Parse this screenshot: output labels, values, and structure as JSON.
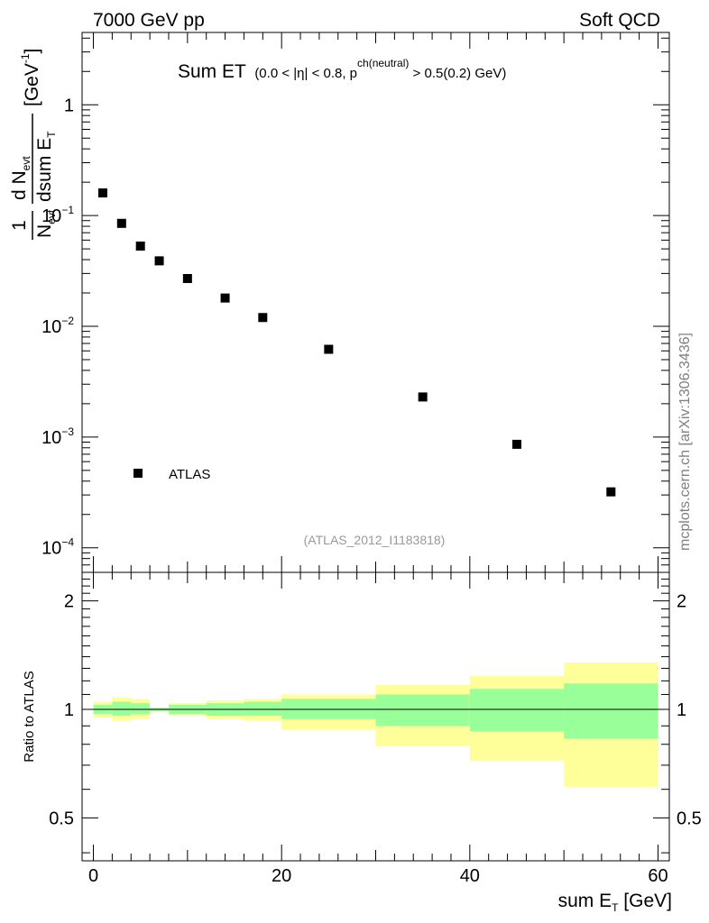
{
  "header": {
    "left": "7000 GeV pp",
    "right": "Soft QCD"
  },
  "plot_title": {
    "main": "Sum ET",
    "cut_a": "(0.0 < |",
    "eta": "η",
    "cut_b": "| < 0.8, p",
    "cut_sup": "ch(neutral)",
    "cut_c": " > 0.5(0.2) GeV)"
  },
  "analysis_ref": "(ATLAS_2012_I1183818)",
  "side_label": "mcplots.cern.ch [arXiv:1306.3436]",
  "upper_ylabel": {
    "numerator_one": "1",
    "denominator_n": "N",
    "denominator_sub": "evt",
    "frac_num_d": "d N",
    "frac_num_sub": "evt",
    "frac_den": "dsum E",
    "frac_den_sub": "T",
    "unit": "[GeV",
    "unit_sup": "-1",
    "unit_close": "]"
  },
  "lower_ylabel": "Ratio to ATLAS",
  "xlabel": {
    "main": "sum E",
    "sub": "T",
    "unit": " [GeV]"
  },
  "legend": {
    "entry": "ATLAS"
  },
  "colors": {
    "data": "#000000",
    "band_inner": "#99ff99",
    "band_outer": "#ffff99",
    "ref_text": "#999999"
  },
  "chart_data": [
    {
      "type": "scatter",
      "title": "Sum ET",
      "xlabel": "sum E_T [GeV]",
      "ylabel": "1/N_evt dN_evt/dsum E_T [GeV^-1]",
      "yscale": "log",
      "xlim": [
        -1.2,
        61.2
      ],
      "ylim": [
        6e-05,
        4.5
      ],
      "ytick_labels": [
        {
          "v": 1,
          "label": "1"
        },
        {
          "v": 0.1,
          "base": "10",
          "exp": "−1"
        },
        {
          "v": 0.01,
          "base": "10",
          "exp": "−2"
        },
        {
          "v": 0.001,
          "base": "10",
          "exp": "−3"
        },
        {
          "v": 0.0001,
          "base": "10",
          "exp": "−4"
        }
      ],
      "series": [
        {
          "name": "ATLAS",
          "x": [
            1,
            3,
            5,
            7,
            10,
            14,
            18,
            25,
            35,
            45,
            55
          ],
          "y": [
            0.16,
            0.085,
            0.053,
            0.039,
            0.027,
            0.018,
            0.012,
            0.0062,
            0.0023,
            0.00086,
            0.00032
          ]
        }
      ]
    },
    {
      "type": "area",
      "title": "Ratio to ATLAS",
      "xlabel": "sum E_T [GeV]",
      "ylabel": "Ratio to ATLAS",
      "yscale": "log",
      "xlim": [
        -1.2,
        61.2
      ],
      "ylim": [
        0.38,
        2.4
      ],
      "xticks": [
        0,
        20,
        40,
        60
      ],
      "yticks": [
        0.5,
        1,
        2
      ],
      "reference_line": 1.0,
      "bins": [
        {
          "lo": 0,
          "hi": 2,
          "inner": [
            0.97,
            1.03
          ],
          "outer": [
            0.95,
            1.05
          ]
        },
        {
          "lo": 2,
          "hi": 4,
          "inner": [
            0.96,
            1.05
          ],
          "outer": [
            0.93,
            1.08
          ]
        },
        {
          "lo": 4,
          "hi": 6,
          "inner": [
            0.97,
            1.04
          ],
          "outer": [
            0.94,
            1.07
          ]
        },
        {
          "lo": 6,
          "hi": 8,
          "inner": [
            0.99,
            1.01
          ],
          "outer": [
            0.99,
            1.01
          ]
        },
        {
          "lo": 8,
          "hi": 12,
          "inner": [
            0.97,
            1.03
          ],
          "outer": [
            0.96,
            1.04
          ]
        },
        {
          "lo": 12,
          "hi": 16,
          "inner": [
            0.96,
            1.04
          ],
          "outer": [
            0.94,
            1.06
          ]
        },
        {
          "lo": 16,
          "hi": 20,
          "inner": [
            0.96,
            1.05
          ],
          "outer": [
            0.93,
            1.07
          ]
        },
        {
          "lo": 20,
          "hi": 30,
          "inner": [
            0.94,
            1.07
          ],
          "outer": [
            0.88,
            1.1
          ]
        },
        {
          "lo": 30,
          "hi": 40,
          "inner": [
            0.9,
            1.1
          ],
          "outer": [
            0.79,
            1.17
          ]
        },
        {
          "lo": 40,
          "hi": 50,
          "inner": [
            0.87,
            1.14
          ],
          "outer": [
            0.72,
            1.24
          ]
        },
        {
          "lo": 50,
          "hi": 60,
          "inner": [
            0.83,
            1.18
          ],
          "outer": [
            0.61,
            1.35
          ]
        }
      ]
    }
  ]
}
